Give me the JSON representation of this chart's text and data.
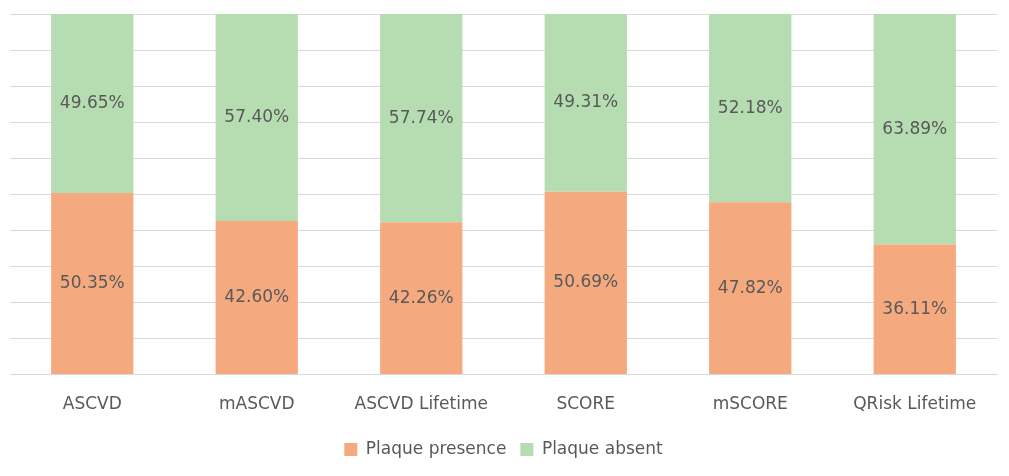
{
  "chart_data": {
    "type": "bar",
    "stacked": true,
    "categories": [
      "ASCVD",
      "mASCVD",
      "ASCVD Lifetime",
      "SCORE",
      "mSCORE",
      "QRisk Lifetime"
    ],
    "series": [
      {
        "name": "Plaque presence",
        "color": "#f4aa7e",
        "values": [
          50.35,
          42.6,
          42.26,
          50.69,
          47.82,
          36.11
        ],
        "value_labels": [
          "50.35%",
          "42.60%",
          "42.26%",
          "50.69%",
          "47.82%",
          "36.11%"
        ]
      },
      {
        "name": "Plaque absent",
        "color": "#b6dcb1",
        "values": [
          49.65,
          57.4,
          57.74,
          49.31,
          52.18,
          63.89
        ],
        "value_labels": [
          "49.65%",
          "57.40%",
          "57.74%",
          "49.31%",
          "52.18%",
          "63.89%"
        ]
      }
    ],
    "ylim": [
      0,
      100
    ],
    "yticks": [
      {
        "value": 0,
        "label": null
      },
      {
        "value": 10,
        "label": null
      },
      {
        "value": 20,
        "label": null
      },
      {
        "value": 30,
        "label": null
      },
      {
        "value": 40,
        "label": null
      },
      {
        "value": 50,
        "label": null
      },
      {
        "value": 60,
        "label": null
      },
      {
        "value": 70,
        "label": null
      },
      {
        "value": 80,
        "label": null
      },
      {
        "value": 90,
        "label": null
      },
      {
        "value": 100,
        "label": null
      }
    ],
    "tick_labels": "x",
    "grid": "y",
    "legend": "bottom"
  }
}
